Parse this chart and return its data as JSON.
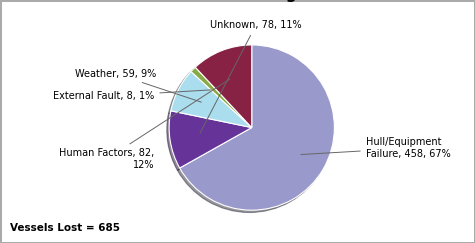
{
  "values": [
    458,
    78,
    59,
    8,
    82
  ],
  "slice_labels": [
    "Hull/Equipment\nFailure, 458, 67%",
    "Unknown, 78, 11%",
    "Weather, 59, 9%",
    "External Fault, 8, 1%",
    "Human Factors, 82,\n12%"
  ],
  "colors": [
    "#9999cc",
    "#663399",
    "#aaddee",
    "#88aa44",
    "#882244"
  ],
  "shadow_colors": [
    "#6666aa",
    "#441177",
    "#88bbcc",
    "#667733",
    "#661133"
  ],
  "startangle": 90,
  "background_color": "#ffffff",
  "border_color": "#aaaaaa",
  "title_fontsize": 11,
  "label_fontsize": 7,
  "annotation": "Vessels Lost = 685",
  "label_coords": [
    [
      1.38,
      -0.25,
      "left",
      "center"
    ],
    [
      0.05,
      1.18,
      "center",
      "bottom"
    ],
    [
      -1.15,
      0.65,
      "right",
      "center"
    ],
    [
      -1.18,
      0.38,
      "right",
      "center"
    ],
    [
      -1.18,
      -0.38,
      "right",
      "center"
    ]
  ]
}
